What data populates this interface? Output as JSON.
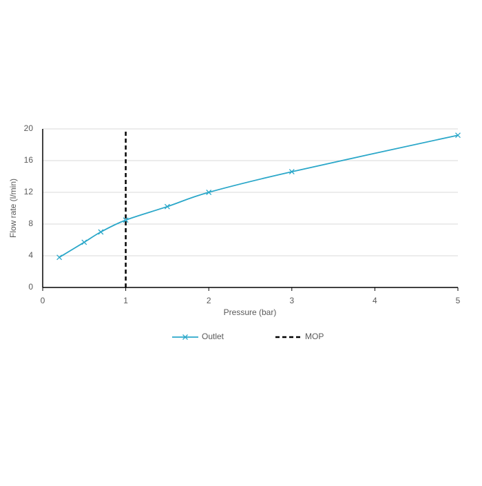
{
  "chart_data": {
    "type": "line",
    "x_label": "Pressure (bar)",
    "y_label": "Flow rate (l/min)",
    "series": [
      {
        "name": "Outlet",
        "color": "#2aa7c9",
        "marker": "x",
        "x": [
          0.2,
          0.5,
          0.7,
          1,
          1.5,
          2,
          3,
          5
        ],
        "values": [
          3.8,
          5.7,
          7.0,
          8.5,
          10.2,
          12.0,
          14.6,
          19.2
        ]
      },
      {
        "name": "MOP",
        "color": "#000000",
        "dash": true,
        "x": [
          1,
          1
        ],
        "values": [
          0,
          20
        ]
      }
    ],
    "xlim": [
      0,
      5
    ],
    "xticks": [
      0,
      1,
      2,
      3,
      4,
      5
    ],
    "ylim": [
      0,
      20
    ],
    "yticks": [
      0,
      4,
      8,
      12,
      16,
      20
    ],
    "grid": true,
    "legend": "bottom"
  }
}
